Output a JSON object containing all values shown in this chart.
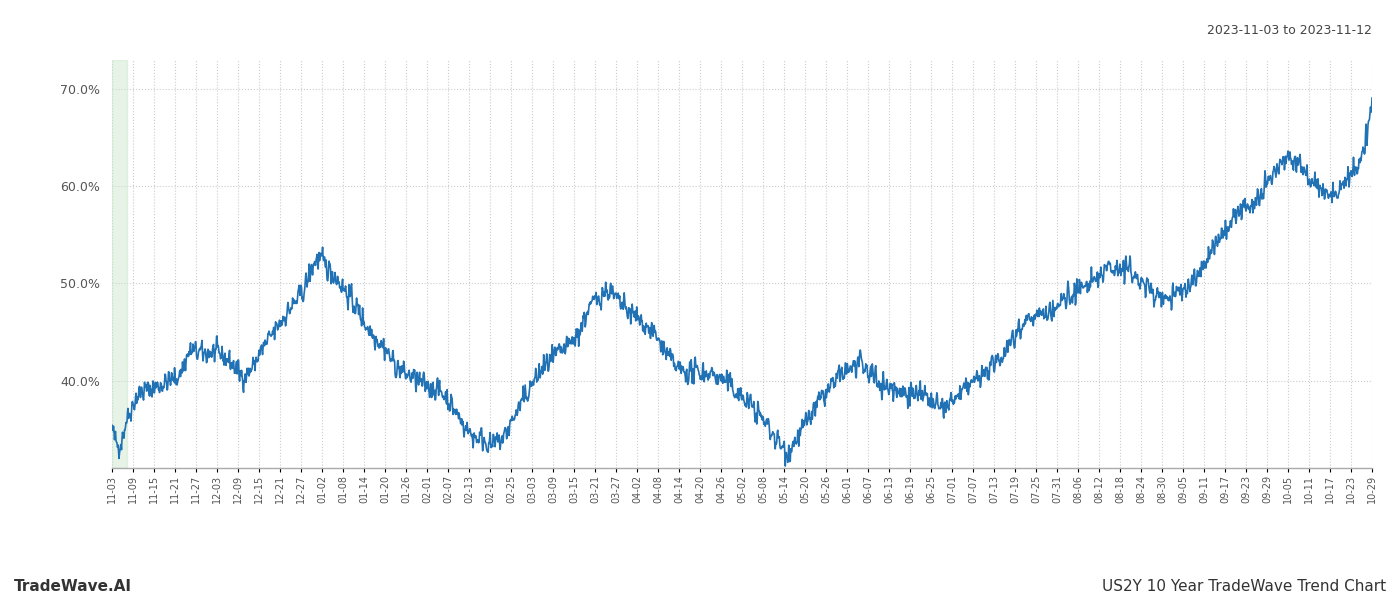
{
  "title_top_right": "2023-11-03 to 2023-11-12",
  "bottom_left": "TradeWave.AI",
  "bottom_right": "US2Y 10 Year TradeWave Trend Chart",
  "line_color": "#2171b5",
  "line_width": 1.2,
  "highlight_color": "#c8e6c9",
  "highlight_alpha": 0.45,
  "background_color": "#ffffff",
  "grid_color": "#cccccc",
  "grid_style": ":",
  "ylim": [
    31,
    73
  ],
  "yticks": [
    40.0,
    50.0,
    60.0,
    70.0
  ],
  "xtick_labels": [
    "11-03",
    "11-09",
    "11-15",
    "11-21",
    "11-27",
    "12-03",
    "12-09",
    "12-15",
    "12-21",
    "12-27",
    "01-02",
    "01-08",
    "01-14",
    "01-20",
    "01-26",
    "02-01",
    "02-07",
    "02-13",
    "02-19",
    "02-25",
    "03-03",
    "03-09",
    "03-15",
    "03-21",
    "03-27",
    "04-02",
    "04-08",
    "04-14",
    "04-20",
    "04-26",
    "05-02",
    "05-08",
    "05-14",
    "05-20",
    "05-26",
    "06-01",
    "06-07",
    "06-13",
    "06-19",
    "06-25",
    "07-01",
    "07-07",
    "07-13",
    "07-19",
    "07-25",
    "07-31",
    "08-06",
    "08-12",
    "08-18",
    "08-24",
    "08-30",
    "09-05",
    "09-11",
    "09-17",
    "09-23",
    "09-29",
    "10-05",
    "10-11",
    "10-17",
    "10-23",
    "10-29"
  ]
}
